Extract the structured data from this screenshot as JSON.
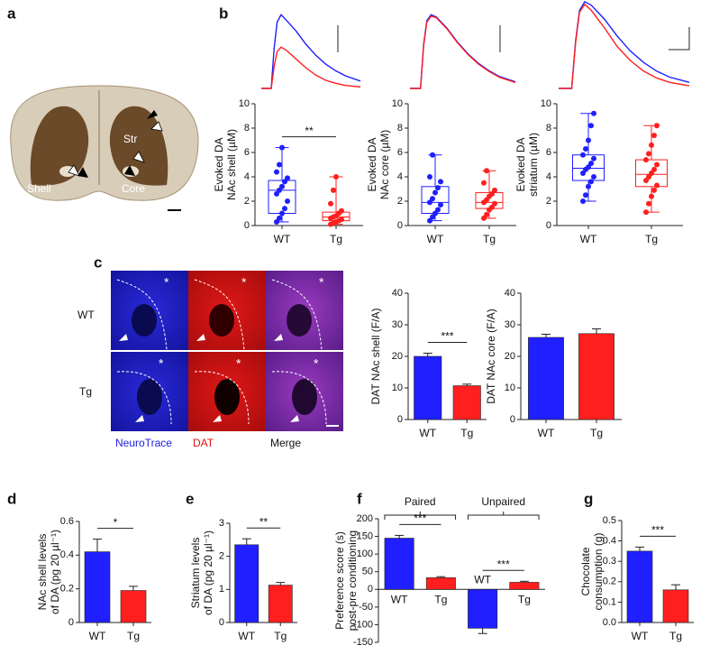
{
  "panel_labels": [
    "a",
    "b",
    "c",
    "d",
    "e",
    "f",
    "g"
  ],
  "image_labels": {
    "shell": "Shell",
    "core": "Core",
    "str": "Str",
    "row_wt": "WT",
    "row_tg": "Tg",
    "neurotrace": "NeuroTrace",
    "dat": "DAT",
    "merge": "Merge",
    "tile_mark": "*"
  },
  "chart_data": [
    {
      "type": "line",
      "x": [
        0,
        1,
        1.3,
        1.6,
        2,
        2.5,
        3.5,
        4.5,
        5.5,
        6.5,
        7.5,
        8.5,
        10
      ],
      "xlim": [
        0,
        10
      ],
      "ylim": [
        0,
        1.2
      ],
      "series": [
        {
          "color": "#1f1fff",
          "values": [
            0,
            0,
            0.55,
            0.9,
            1.0,
            0.93,
            0.78,
            0.6,
            0.45,
            0.33,
            0.24,
            0.17,
            0.1
          ]
        },
        {
          "color": "#ff1f1f",
          "values": [
            0,
            0,
            0.3,
            0.5,
            0.56,
            0.52,
            0.4,
            0.28,
            0.18,
            0.11,
            0.07,
            0.04,
            0.02
          ]
        }
      ]
    },
    {
      "type": "line",
      "x": [
        0,
        1,
        1.3,
        1.6,
        2,
        2.5,
        3.5,
        4.5,
        5.5,
        6.5,
        7.5,
        8.5,
        10
      ],
      "xlim": [
        0,
        10
      ],
      "ylim": [
        0,
        1.2
      ],
      "series": [
        {
          "color": "#1f1fff",
          "values": [
            0,
            0,
            0.6,
            0.92,
            1.0,
            0.97,
            0.82,
            0.63,
            0.47,
            0.34,
            0.24,
            0.16,
            0.09
          ]
        },
        {
          "color": "#ff1f1f",
          "values": [
            0,
            0,
            0.58,
            0.9,
            0.98,
            0.96,
            0.81,
            0.62,
            0.46,
            0.33,
            0.23,
            0.15,
            0.08
          ]
        }
      ]
    },
    {
      "type": "line",
      "x": [
        0,
        1,
        1.3,
        1.6,
        2,
        2.5,
        3.5,
        4.5,
        5.5,
        6.5,
        7.5,
        8.5,
        10
      ],
      "xlim": [
        0,
        10
      ],
      "ylim": [
        0,
        1.02
      ],
      "series": [
        {
          "color": "#1f1fff",
          "values": [
            0,
            0,
            0.55,
            0.9,
            1.0,
            0.96,
            0.8,
            0.6,
            0.43,
            0.3,
            0.2,
            0.13,
            0.07
          ]
        },
        {
          "color": "#ff1f1f",
          "values": [
            0,
            0,
            0.53,
            0.88,
            0.97,
            0.9,
            0.7,
            0.48,
            0.32,
            0.2,
            0.12,
            0.07,
            0.03
          ]
        }
      ]
    },
    {
      "type": "box",
      "ylabel": [
        "Evoked DA",
        "NAc shell  (µM)"
      ],
      "categories": [
        "WT",
        "Tg"
      ],
      "colors": [
        "#1f1fff",
        "#ff1f1f"
      ],
      "ylim": [
        0,
        10
      ],
      "yticks": [
        0,
        2,
        4,
        6,
        8,
        10
      ],
      "significance": "**",
      "boxes": [
        {
          "min": 0.3,
          "q1": 1.0,
          "median": 2.9,
          "q3": 3.7,
          "max": 6.4,
          "points": [
            0.3,
            0.6,
            1.0,
            1.4,
            2.0,
            2.6,
            2.9,
            3.2,
            3.6,
            3.9,
            4.4,
            5.0,
            6.4
          ]
        },
        {
          "min": 0.1,
          "q1": 0.4,
          "median": 0.7,
          "q3": 1.1,
          "max": 4.0,
          "points": [
            0.1,
            0.2,
            0.3,
            0.4,
            0.5,
            0.6,
            0.7,
            0.8,
            1.0,
            1.2,
            1.8,
            2.9,
            4.0
          ]
        }
      ]
    },
    {
      "type": "box",
      "ylabel": [
        "Evoked DA",
        "NAc core  (µM)"
      ],
      "categories": [
        "WT",
        "Tg"
      ],
      "colors": [
        "#1f1fff",
        "#ff1f1f"
      ],
      "ylim": [
        0,
        10
      ],
      "yticks": [
        0,
        2,
        4,
        6,
        8,
        10
      ],
      "boxes": [
        {
          "min": 0.4,
          "q1": 1.0,
          "median": 1.9,
          "q3": 3.2,
          "max": 5.8,
          "points": [
            0.4,
            0.7,
            1.0,
            1.3,
            1.7,
            1.9,
            2.2,
            2.7,
            3.1,
            3.6,
            4.0,
            5.8
          ]
        },
        {
          "min": 0.6,
          "q1": 1.4,
          "median": 1.9,
          "q3": 2.7,
          "max": 4.5,
          "points": [
            0.6,
            0.9,
            1.3,
            1.5,
            1.8,
            1.9,
            2.1,
            2.4,
            2.6,
            2.9,
            3.5,
            4.5
          ]
        }
      ]
    },
    {
      "type": "box",
      "ylabel": [
        "Evoked DA",
        "striatum  (µM)"
      ],
      "categories": [
        "WT",
        "Tg"
      ],
      "colors": [
        "#1f1fff",
        "#ff1f1f"
      ],
      "ylim": [
        0,
        10
      ],
      "yticks": [
        0,
        2,
        4,
        6,
        8,
        10
      ],
      "boxes": [
        {
          "min": 2.0,
          "q1": 3.7,
          "median": 4.7,
          "q3": 5.8,
          "max": 9.2,
          "points": [
            2.0,
            2.5,
            3.2,
            3.6,
            4.0,
            4.3,
            4.6,
            4.8,
            5.1,
            5.5,
            5.8,
            6.3,
            7.0,
            8.2,
            9.2
          ]
        },
        {
          "min": 1.1,
          "q1": 3.2,
          "median": 4.2,
          "q3": 5.4,
          "max": 8.2,
          "points": [
            1.1,
            1.8,
            2.4,
            2.9,
            3.3,
            3.7,
            4.0,
            4.3,
            4.6,
            5.0,
            5.4,
            5.9,
            6.6,
            7.4,
            8.2
          ]
        }
      ]
    },
    {
      "type": "bar",
      "ylabel": [
        "DAT NAc shell (F/A)"
      ],
      "categories": [
        "WT",
        "Tg"
      ],
      "colors": [
        "#1f1fff",
        "#ff1f1f"
      ],
      "values": [
        20,
        10.7
      ],
      "errors": [
        1,
        0.5
      ],
      "ylim": [
        0,
        40
      ],
      "yticks": [
        0,
        10,
        20,
        30,
        40
      ],
      "significance": "***"
    },
    {
      "type": "bar",
      "ylabel": [
        "DAT NAc core (F/A)"
      ],
      "categories": [
        "WT",
        "Tg"
      ],
      "colors": [
        "#1f1fff",
        "#ff1f1f"
      ],
      "values": [
        26,
        27.2
      ],
      "errors": [
        1,
        1.5
      ],
      "ylim": [
        0,
        40
      ],
      "yticks": [
        0,
        10,
        20,
        30,
        40
      ]
    },
    {
      "type": "bar",
      "ylabel": [
        "NAc shell levels",
        "of DA (pg 20 µl⁻¹)"
      ],
      "categories": [
        "WT",
        "Tg"
      ],
      "colors": [
        "#1f1fff",
        "#ff1f1f"
      ],
      "values": [
        0.42,
        0.19
      ],
      "errors": [
        0.075,
        0.025
      ],
      "ylim": [
        0,
        0.6
      ],
      "yticks": [
        0,
        0.2,
        0.4,
        0.6
      ],
      "significance": "*"
    },
    {
      "type": "bar",
      "ylabel": [
        "Striatum levels",
        "of DA (pg 20 µl⁻¹)"
      ],
      "categories": [
        "WT",
        "Tg"
      ],
      "colors": [
        "#1f1fff",
        "#ff1f1f"
      ],
      "values": [
        2.35,
        1.13
      ],
      "errors": [
        0.18,
        0.08
      ],
      "ylim": [
        0,
        3
      ],
      "yticks": [
        0,
        1,
        2,
        3
      ],
      "significance": "**"
    },
    {
      "type": "bar",
      "ylabel": [
        "Preference score (s)",
        "post-pre conditioning"
      ],
      "groups": [
        "Paired",
        "Unpaired"
      ],
      "categories": [
        "WT",
        "Tg",
        "WT",
        "Tg"
      ],
      "colors": [
        "#1f1fff",
        "#ff1f1f",
        "#1f1fff",
        "#ff1f1f"
      ],
      "values": [
        145,
        33,
        -110,
        20
      ],
      "errors": [
        8,
        3,
        15,
        3
      ],
      "ylim": [
        -150,
        200
      ],
      "yticks": [
        -150,
        -100,
        -50,
        0,
        50,
        100,
        150,
        200
      ],
      "significance": [
        "***",
        "***"
      ]
    },
    {
      "type": "bar",
      "ylabel": [
        "Chocolate",
        "consumption (g)"
      ],
      "categories": [
        "WT",
        "Tg"
      ],
      "colors": [
        "#1f1fff",
        "#ff1f1f"
      ],
      "values": [
        0.35,
        0.16
      ],
      "errors": [
        0.02,
        0.025
      ],
      "ylim": [
        0,
        0.5
      ],
      "yticks": [
        {
          "value": 0,
          "label": "0.0"
        },
        0.1,
        0.2,
        0.3,
        0.4,
        0.5
      ],
      "significance": "***"
    }
  ]
}
